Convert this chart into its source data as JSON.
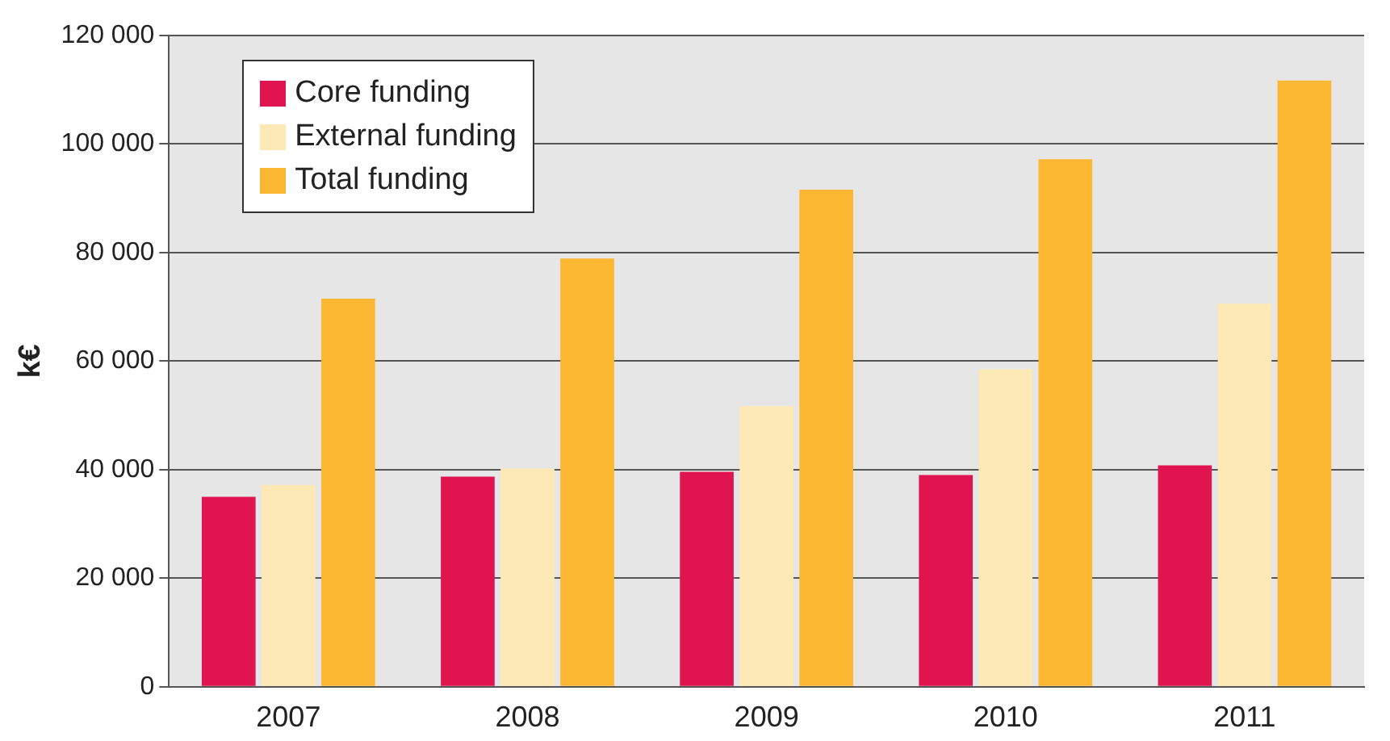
{
  "chart_data": {
    "type": "bar",
    "ylabel": "k€",
    "categories": [
      "2007",
      "2008",
      "2009",
      "2010",
      "2011"
    ],
    "series": [
      {
        "name": "Core funding",
        "color": "#e0144f",
        "values": [
          35000,
          38700,
          39600,
          39000,
          40800
        ]
      },
      {
        "name": "External funding",
        "color": "#fde9b5",
        "values": [
          37200,
          40200,
          51700,
          58500,
          70600
        ]
      },
      {
        "name": "Total funding",
        "color": "#fcb732",
        "values": [
          71500,
          78900,
          91600,
          97200,
          111700
        ]
      }
    ],
    "ylim": [
      0,
      120000
    ],
    "yticks": [
      {
        "value": 0,
        "label": "0"
      },
      {
        "value": 20000,
        "label": "20 000"
      },
      {
        "value": 40000,
        "label": "40 000"
      },
      {
        "value": 60000,
        "label": "60 000"
      },
      {
        "value": 80000,
        "label": "80 000"
      },
      {
        "value": 100000,
        "label": "100 000"
      },
      {
        "value": 120000,
        "label": "120 000"
      }
    ],
    "grid": "y",
    "legend": "top left"
  }
}
